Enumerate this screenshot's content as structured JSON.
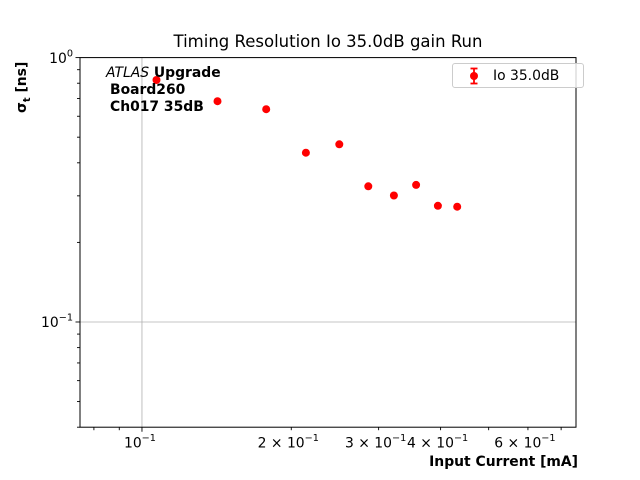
{
  "title": "Timing Resolution Io 35.0dB gain Run",
  "annotation": {
    "experiment": "ATLAS",
    "program": " Upgrade",
    "board": "Board260",
    "channel": "Ch017 35dB"
  },
  "legend": {
    "label": "Io 35.0dB",
    "marker": "circle-with-errorbar",
    "color": "#ff0000",
    "position": "upper right"
  },
  "axes": {
    "xlabel": "Input Current [mA]",
    "ylabel": {
      "symbol": "σ",
      "subscript": "t",
      "units": " [ns]"
    }
  },
  "chart_data": {
    "type": "scatter",
    "title": "Timing Resolution Io 35.0dB gain Run",
    "xlabel": "Input Current [mA]",
    "ylabel": "sigma_t [ns]",
    "xscale": "log",
    "yscale": "log",
    "xlim": [
      0.075,
      0.75
    ],
    "ylim": [
      0.04,
      1.0
    ],
    "grid": true,
    "legend_position": "upper right",
    "series": [
      {
        "name": "Io 35.0dB",
        "color": "#ff0000",
        "marker": "circle",
        "marker_size_px": 8,
        "x": [
          0.107,
          0.142,
          0.178,
          0.214,
          0.25,
          0.286,
          0.322,
          0.357,
          0.395,
          0.432
        ],
        "y": [
          0.823,
          0.684,
          0.638,
          0.437,
          0.47,
          0.326,
          0.301,
          0.33,
          0.275,
          0.273
        ]
      }
    ],
    "xticks": {
      "major": [
        {
          "value": 0.1,
          "base": "10",
          "exp": "−1"
        }
      ],
      "minor_labeled": [
        {
          "value": 0.2,
          "base": "2 × 10",
          "exp": "−1"
        },
        {
          "value": 0.3,
          "base": "3 × 10",
          "exp": "−1"
        },
        {
          "value": 0.4,
          "base": "4 × 10",
          "exp": "−1"
        },
        {
          "value": 0.6,
          "base": "6 × 10",
          "exp": "−1"
        }
      ],
      "minor_unlabeled": [
        0.08,
        0.09,
        0.5,
        0.7
      ]
    },
    "yticks": {
      "major": [
        {
          "value": 1.0,
          "base": "10",
          "exp": "0"
        },
        {
          "value": 0.1,
          "base": "10",
          "exp": "−1"
        }
      ],
      "minor_unlabeled": [
        0.9,
        0.8,
        0.7,
        0.6,
        0.5,
        0.4,
        0.3,
        0.2,
        0.09,
        0.08,
        0.07,
        0.06,
        0.05,
        0.04
      ]
    },
    "gridlines": {
      "x": [
        0.1
      ],
      "y": [
        1.0,
        0.1
      ],
      "color": "#b0b0b0"
    }
  }
}
